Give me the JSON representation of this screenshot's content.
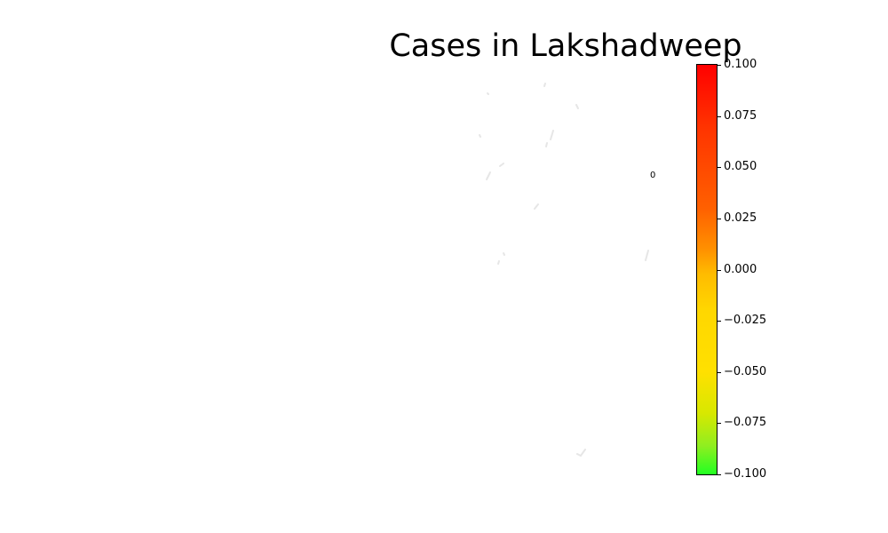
{
  "title": "Cases in Lakshadweep",
  "region_label": "0",
  "colorbar": {
    "ticks": [
      "0.100",
      "0.075",
      "0.050",
      "0.025",
      "0.000",
      "−0.025",
      "−0.050",
      "−0.075",
      "−0.100"
    ],
    "min": -0.1,
    "max": 0.1,
    "colors": [
      "#22ff22",
      "#ffe000",
      "#ffbb00",
      "#ff6000",
      "#ff0000"
    ]
  },
  "island_color": "#e6e6e6"
}
